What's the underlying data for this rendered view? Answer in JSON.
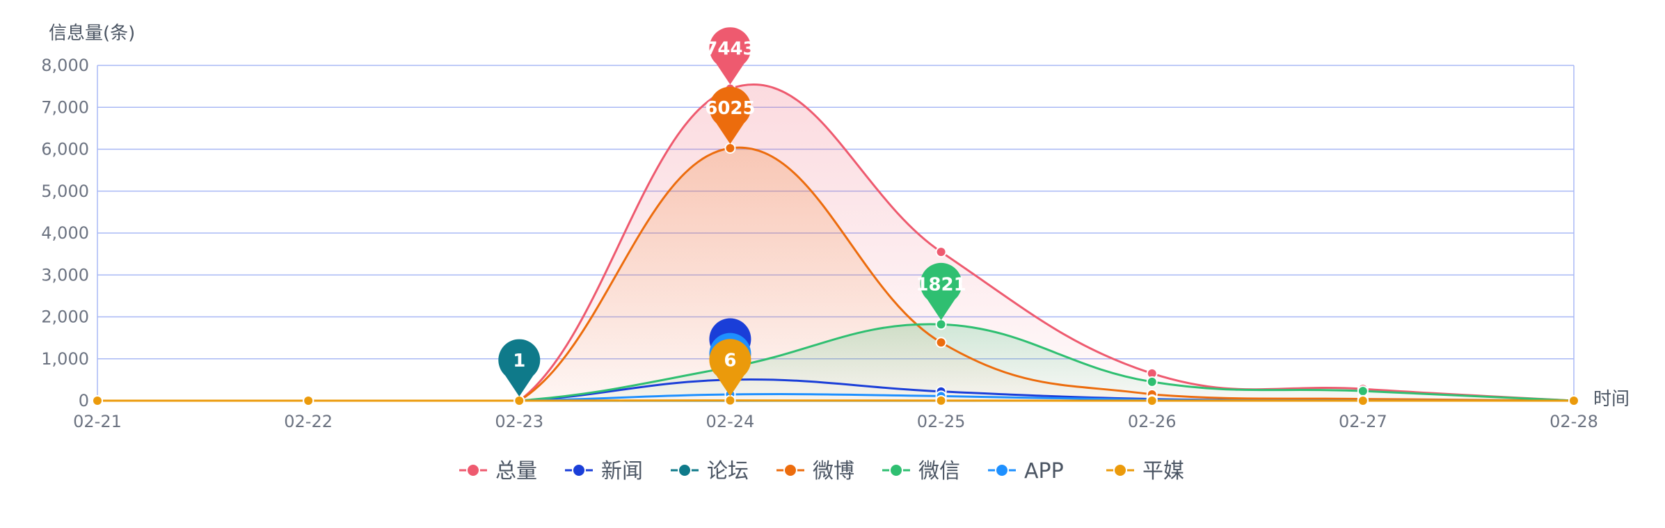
{
  "chart_data": {
    "type": "area",
    "ylabel": "信息量(条)",
    "xlabel": "时间",
    "categories": [
      "02-21",
      "02-22",
      "02-23",
      "02-24",
      "02-25",
      "02-26",
      "02-27",
      "02-28"
    ],
    "ylim": [
      0,
      8000
    ],
    "yticks": [
      0,
      1000,
      2000,
      3000,
      4000,
      5000,
      6000,
      7000,
      8000
    ],
    "ytick_labels": [
      "0",
      "1,000",
      "2,000",
      "3,000",
      "4,000",
      "5,000",
      "6,000",
      "7,000",
      "8,000"
    ],
    "grid": true,
    "legend_position": "bottom",
    "series": [
      {
        "name": "总量",
        "color": "#ee5a6f",
        "values": [
          0,
          0,
          1,
          7443,
          3550,
          650,
          280,
          0
        ],
        "area": true,
        "max_label": "7443",
        "max_index": 3
      },
      {
        "name": "新闻",
        "color": "#1a3ed8",
        "values": [
          0,
          0,
          0,
          500,
          220,
          40,
          10,
          0
        ],
        "area": false,
        "max_label": "",
        "max_index": 3
      },
      {
        "name": "论坛",
        "color": "#0f7a8a",
        "values": [
          0,
          0,
          1,
          0,
          0,
          0,
          0,
          0
        ],
        "area": false,
        "max_label": "1",
        "max_index": 2
      },
      {
        "name": "微博",
        "color": "#ec6c0d",
        "values": [
          0,
          0,
          0,
          6025,
          1390,
          150,
          40,
          0
        ],
        "area": true,
        "max_label": "6025",
        "max_index": 3
      },
      {
        "name": "微信",
        "color": "#2fbf71",
        "values": [
          0,
          0,
          0,
          800,
          1821,
          450,
          230,
          0
        ],
        "area": true,
        "max_label": "1821",
        "max_index": 4
      },
      {
        "name": "APP",
        "color": "#1e90ff",
        "values": [
          0,
          0,
          0,
          150,
          110,
          20,
          5,
          0
        ],
        "area": false,
        "max_label": "",
        "max_index": 3
      },
      {
        "name": "平媒",
        "color": "#eb9a0b",
        "values": [
          0,
          0,
          0,
          6,
          2,
          0,
          0,
          0
        ],
        "area": false,
        "max_label": "6",
        "max_index": 3
      }
    ]
  }
}
